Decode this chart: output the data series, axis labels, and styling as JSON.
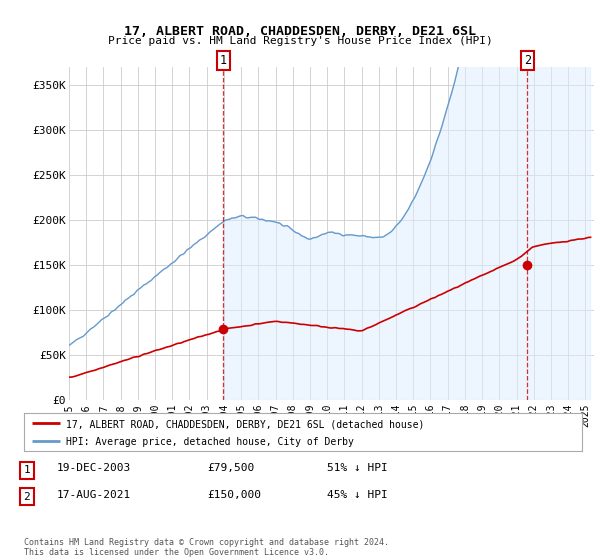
{
  "title": "17, ALBERT ROAD, CHADDESDEN, DERBY, DE21 6SL",
  "subtitle": "Price paid vs. HM Land Registry's House Price Index (HPI)",
  "ylabel_ticks": [
    "£0",
    "£50K",
    "£100K",
    "£150K",
    "£200K",
    "£250K",
    "£300K",
    "£350K"
  ],
  "ytick_vals": [
    0,
    50000,
    100000,
    150000,
    200000,
    250000,
    300000,
    350000
  ],
  "ylim": [
    0,
    370000
  ],
  "xlim_start": 1995.0,
  "xlim_end": 2025.5,
  "transaction1_x": 2003.97,
  "transaction1_y": 79500,
  "transaction1_label": "19-DEC-2003",
  "transaction1_price": "£79,500",
  "transaction1_hpi": "51% ↓ HPI",
  "transaction2_x": 2021.62,
  "transaction2_y": 150000,
  "transaction2_label": "17-AUG-2021",
  "transaction2_price": "£150,000",
  "transaction2_hpi": "45% ↓ HPI",
  "red_line_color": "#cc0000",
  "blue_line_color": "#6699cc",
  "blue_fill_color": "#ddeeff",
  "background_color": "#ffffff",
  "grid_color": "#cccccc",
  "legend_label_red": "17, ALBERT ROAD, CHADDESDEN, DERBY, DE21 6SL (detached house)",
  "legend_label_blue": "HPI: Average price, detached house, City of Derby",
  "footer_text": "Contains HM Land Registry data © Crown copyright and database right 2024.\nThis data is licensed under the Open Government Licence v3.0.",
  "marker_color": "#cc0000",
  "vline_color": "#cc0000",
  "box_color": "#cc0000"
}
